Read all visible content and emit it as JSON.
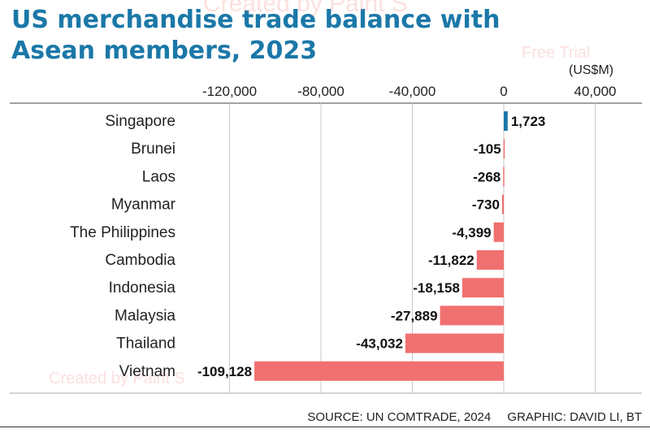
{
  "title": "US merchandise trade balance with Asean members, 2023",
  "unit_label": "(US$M)",
  "source": "SOURCE: UN COMTRADE, 2024",
  "credit": "GRAPHIC: DAVID LI, BT",
  "watermarks": [
    "Created by Paint S",
    "Free Trial",
    "Created by Paint S"
  ],
  "colors": {
    "positive": "#1b78a8",
    "negative": "#f07070",
    "title": "#1b78a8",
    "grid": "#c8c8c8"
  },
  "chart_data": {
    "type": "bar",
    "orientation": "horizontal",
    "title": "US merchandise trade balance with Asean members, 2023",
    "xlabel": "(US$M)",
    "ylabel": "",
    "xlim": [
      -120000,
      40000
    ],
    "xticks": [
      -120000,
      -80000,
      -40000,
      0,
      40000
    ],
    "xtick_labels": [
      "-120,000",
      "-80,000",
      "-40,000",
      "0",
      "40,000"
    ],
    "grid": true,
    "categories": [
      "Singapore",
      "Brunei",
      "Laos",
      "Myanmar",
      "The Philippines",
      "Cambodia",
      "Indonesia",
      "Malaysia",
      "Thailand",
      "Vietnam"
    ],
    "values": [
      1723,
      -105,
      -268,
      -730,
      -4399,
      -11822,
      -18158,
      -27889,
      -43032,
      -109128
    ],
    "value_labels": [
      "1,723",
      "-105",
      "-268",
      "-730",
      "-4,399",
      "-11,822",
      "-18,158",
      "-27,889",
      "-43,032",
      "-109,128"
    ]
  }
}
